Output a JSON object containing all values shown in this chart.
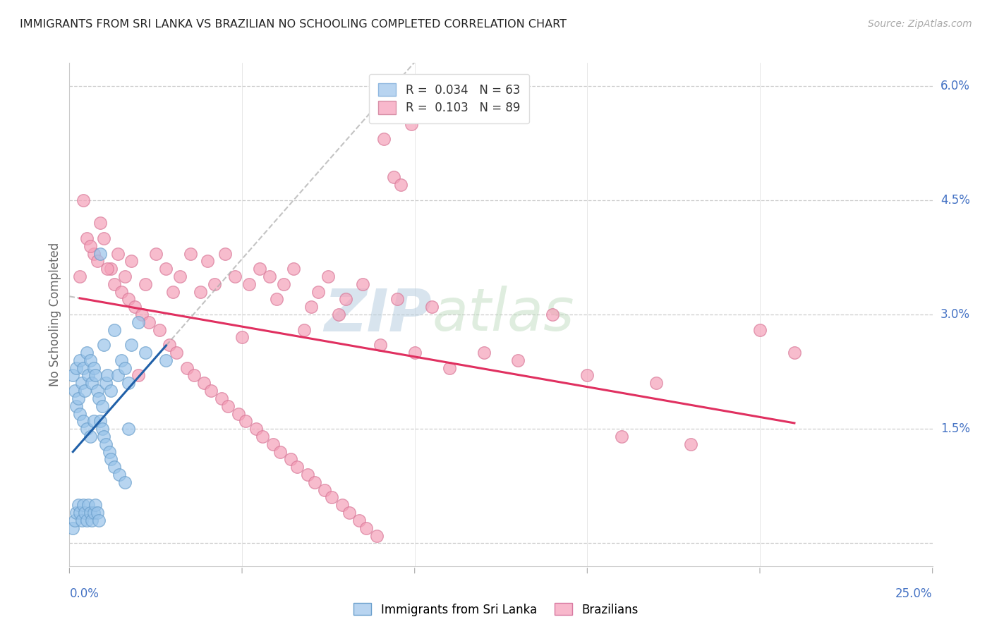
{
  "title": "IMMIGRANTS FROM SRI LANKA VS BRAZILIAN NO SCHOOLING COMPLETED CORRELATION CHART",
  "source": "Source: ZipAtlas.com",
  "ylabel": "No Schooling Completed",
  "xmin": 0.0,
  "xmax": 25.0,
  "ymin": -0.3,
  "ymax": 6.3,
  "ytick_vals": [
    0.0,
    1.5,
    3.0,
    4.5,
    6.0
  ],
  "ytick_lbls": [
    "",
    "1.5%",
    "3.0%",
    "4.5%",
    "6.0%"
  ],
  "series1_color": "#9ac4ea",
  "series2_color": "#f5a0b8",
  "series1_edge": "#6a9fcc",
  "series2_edge": "#d87898",
  "trendline1_color": "#2060a8",
  "trendline2_color": "#e03060",
  "trendline_dashed_color": "#aaaaaa",
  "watermark_zip": "ZIP",
  "watermark_atlas": "atlas",
  "sri_lanka_x": [
    0.1,
    0.15,
    0.2,
    0.2,
    0.25,
    0.3,
    0.3,
    0.35,
    0.4,
    0.4,
    0.45,
    0.5,
    0.5,
    0.55,
    0.6,
    0.6,
    0.65,
    0.7,
    0.7,
    0.75,
    0.8,
    0.85,
    0.9,
    0.95,
    1.0,
    1.05,
    1.1,
    1.2,
    1.3,
    1.4,
    1.5,
    1.6,
    1.7,
    1.8,
    0.1,
    0.15,
    0.2,
    0.25,
    0.3,
    0.35,
    0.4,
    0.45,
    0.5,
    0.55,
    0.6,
    0.65,
    0.7,
    0.75,
    0.8,
    0.85,
    0.9,
    0.95,
    1.0,
    1.05,
    1.15,
    1.2,
    1.3,
    1.45,
    1.6,
    1.7,
    2.0,
    2.2,
    2.8
  ],
  "sri_lanka_y": [
    2.2,
    2.0,
    2.3,
    1.8,
    1.9,
    2.4,
    1.7,
    2.1,
    2.3,
    1.6,
    2.0,
    2.5,
    1.5,
    2.2,
    2.4,
    1.4,
    2.1,
    2.3,
    1.6,
    2.2,
    2.0,
    1.9,
    3.8,
    1.8,
    2.6,
    2.1,
    2.2,
    2.0,
    2.8,
    2.2,
    2.4,
    2.3,
    2.1,
    2.6,
    0.2,
    0.3,
    0.4,
    0.5,
    0.4,
    0.3,
    0.5,
    0.4,
    0.3,
    0.5,
    0.4,
    0.3,
    0.4,
    0.5,
    0.4,
    0.3,
    1.6,
    1.5,
    1.4,
    1.3,
    1.2,
    1.1,
    1.0,
    0.9,
    0.8,
    1.5,
    2.9,
    2.5,
    2.4
  ],
  "brazil_x": [
    0.3,
    0.5,
    0.7,
    0.9,
    1.0,
    1.2,
    1.4,
    1.6,
    1.8,
    2.0,
    2.2,
    2.5,
    2.8,
    3.0,
    3.2,
    3.5,
    3.8,
    4.0,
    4.2,
    4.5,
    4.8,
    5.0,
    5.2,
    5.5,
    5.8,
    6.0,
    6.2,
    6.5,
    6.8,
    7.0,
    7.2,
    7.5,
    7.8,
    8.0,
    8.5,
    9.0,
    9.5,
    10.0,
    10.5,
    11.0,
    12.0,
    13.0,
    14.0,
    15.0,
    16.0,
    17.0,
    18.0,
    20.0,
    21.0,
    0.4,
    0.6,
    0.8,
    1.1,
    1.3,
    1.5,
    1.7,
    1.9,
    2.1,
    2.3,
    2.6,
    2.9,
    3.1,
    3.4,
    3.6,
    3.9,
    4.1,
    4.4,
    4.6,
    4.9,
    5.1,
    5.4,
    5.6,
    5.9,
    6.1,
    6.4,
    6.6,
    6.9,
    7.1,
    7.4,
    7.6,
    7.9,
    8.1,
    8.4,
    8.6,
    8.9,
    9.1,
    9.4,
    9.6,
    9.9
  ],
  "brazil_y": [
    3.5,
    4.0,
    3.8,
    4.2,
    4.0,
    3.6,
    3.8,
    3.5,
    3.7,
    2.2,
    3.4,
    3.8,
    3.6,
    3.3,
    3.5,
    3.8,
    3.3,
    3.7,
    3.4,
    3.8,
    3.5,
    2.7,
    3.4,
    3.6,
    3.5,
    3.2,
    3.4,
    3.6,
    2.8,
    3.1,
    3.3,
    3.5,
    3.0,
    3.2,
    3.4,
    2.6,
    3.2,
    2.5,
    3.1,
    2.3,
    2.5,
    2.4,
    3.0,
    2.2,
    1.4,
    2.1,
    1.3,
    2.8,
    2.5,
    4.5,
    3.9,
    3.7,
    3.6,
    3.4,
    3.3,
    3.2,
    3.1,
    3.0,
    2.9,
    2.8,
    2.6,
    2.5,
    2.3,
    2.2,
    2.1,
    2.0,
    1.9,
    1.8,
    1.7,
    1.6,
    1.5,
    1.4,
    1.3,
    1.2,
    1.1,
    1.0,
    0.9,
    0.8,
    0.7,
    0.6,
    0.5,
    0.4,
    0.3,
    0.2,
    0.1,
    5.3,
    4.8,
    4.7,
    5.5
  ]
}
